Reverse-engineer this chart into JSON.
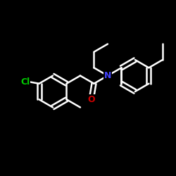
{
  "background_color": "#000000",
  "bond_color": "#ffffff",
  "bond_width": 1.8,
  "atom_Cl": {
    "label": "Cl",
    "color": "#00cc00",
    "fontsize": 9
  },
  "atom_N": {
    "label": "N",
    "color": "#4444ff",
    "fontsize": 9
  },
  "atom_O": {
    "label": "O",
    "color": "#cc0000",
    "fontsize": 9
  },
  "figsize": [
    2.5,
    2.5
  ],
  "dpi": 100
}
